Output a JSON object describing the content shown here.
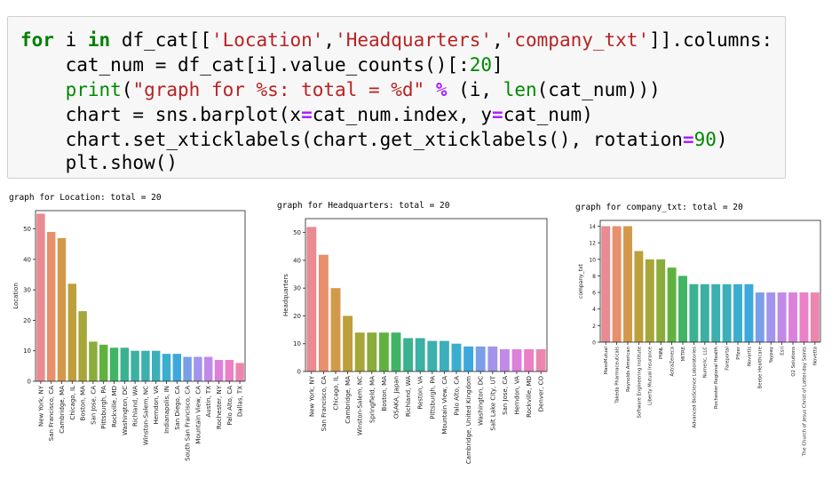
{
  "code": {
    "lines": [
      [
        {
          "t": "for",
          "c": "kw"
        },
        {
          "t": " i ",
          "c": ""
        },
        {
          "t": "in",
          "c": "kw"
        },
        {
          "t": " df_cat[[",
          "c": ""
        },
        {
          "t": "'Location'",
          "c": "str"
        },
        {
          "t": ",",
          "c": ""
        },
        {
          "t": "'Headquarters'",
          "c": "str"
        },
        {
          "t": ",",
          "c": ""
        },
        {
          "t": "'company_txt'",
          "c": "str"
        },
        {
          "t": "]].columns:",
          "c": ""
        }
      ],
      [
        {
          "t": "    cat_num = df_cat[i].value_counts()[:",
          "c": ""
        },
        {
          "t": "20",
          "c": "num"
        },
        {
          "t": "]",
          "c": ""
        }
      ],
      [
        {
          "t": "    ",
          "c": ""
        },
        {
          "t": "print",
          "c": "num"
        },
        {
          "t": "(",
          "c": ""
        },
        {
          "t": "\"graph for %s: total = %d\"",
          "c": "str"
        },
        {
          "t": " ",
          "c": ""
        },
        {
          "t": "%",
          "c": "op"
        },
        {
          "t": " (i, ",
          "c": ""
        },
        {
          "t": "len",
          "c": "num"
        },
        {
          "t": "(cat_num)))",
          "c": ""
        }
      ],
      [
        {
          "t": "    chart = sns.barplot(x",
          "c": ""
        },
        {
          "t": "=",
          "c": "op"
        },
        {
          "t": "cat_num.index, y",
          "c": ""
        },
        {
          "t": "=",
          "c": "op"
        },
        {
          "t": "cat_num)",
          "c": ""
        }
      ],
      [
        {
          "t": "    chart.set_xticklabels(chart.get_xticklabels(), rotation",
          "c": ""
        },
        {
          "t": "=",
          "c": "op"
        },
        {
          "t": "90",
          "c": "num"
        },
        {
          "t": ")",
          "c": ""
        }
      ],
      [
        {
          "t": "    plt.show()",
          "c": ""
        }
      ]
    ]
  },
  "outputs": [
    {
      "title": "graph for Location: total = 20"
    },
    {
      "title": "graph for Headquarters: total = 20"
    },
    {
      "title": "graph for company_txt: total = 20"
    }
  ],
  "chart_data": [
    {
      "type": "bar",
      "ylabel": "Location",
      "ylim": [
        0,
        56
      ],
      "yticks": [
        0,
        10,
        20,
        30,
        40,
        50
      ],
      "categories": [
        "New York, NY",
        "San Francisco, CA",
        "Cambridge, MA",
        "Chicago, IL",
        "Boston, MA",
        "San Jose, CA",
        "Pittsburgh, PA",
        "Rockville, MD",
        "Washington, DC",
        "Richland, WA",
        "Winston-Salem, NC",
        "Herndon, VA",
        "Indianapolis, IN",
        "San Diego, CA",
        "South San Francisco, CA",
        "Mountain View, CA",
        "Austin, TX",
        "Rochester, NY",
        "Palo Alto, CA",
        "Dallas, TX"
      ],
      "values": [
        55,
        49,
        47,
        32,
        23,
        13,
        12,
        11,
        11,
        10,
        10,
        10,
        9,
        9,
        8,
        8,
        8,
        7,
        7,
        6
      ],
      "colors": [
        "#ea8a91",
        "#e7906b",
        "#d3994a",
        "#bd9f3b",
        "#a7a639",
        "#8aac3b",
        "#60b23f",
        "#41b465",
        "#3bb28f",
        "#3bb0a3",
        "#3bb0ae",
        "#3cafbb",
        "#3aaece",
        "#3da8dd",
        "#7a9ee8",
        "#a294ec",
        "#c18ae8",
        "#dc81db",
        "#eb80c6",
        "#ec86ae"
      ]
    },
    {
      "type": "bar",
      "ylabel": "Headquarters",
      "ylim": [
        0,
        55
      ],
      "yticks": [
        0,
        10,
        20,
        30,
        40,
        50
      ],
      "categories": [
        "New York, NY",
        "San Francisco, CA",
        "Chicago, IL",
        "Cambridge, MA",
        "Winston-Salem, NC",
        "Springfield, MA",
        "Boston, MA",
        "OSAKA, Japan",
        "Richland, WA",
        "Reston, VA",
        "Pittsburgh, PA",
        "Mountain View, CA",
        "Palo Alto, CA",
        "Cambridge, United Kingdom",
        "Washington, DC",
        "Salt Lake City, UT",
        "San Jose, CA",
        "Herndon, VA",
        "Rockville, MD",
        "Denver, CO"
      ],
      "values": [
        52,
        42,
        30,
        20,
        14,
        14,
        14,
        14,
        12,
        12,
        11,
        11,
        10,
        9,
        9,
        9,
        8,
        8,
        8,
        8
      ],
      "colors": [
        "#ea8a91",
        "#e7906b",
        "#d3994a",
        "#bd9f3b",
        "#a7a639",
        "#8aac3b",
        "#60b23f",
        "#41b465",
        "#3bb28f",
        "#3bb0a3",
        "#3bb0ae",
        "#3cafbb",
        "#3aaece",
        "#3da8dd",
        "#7a9ee8",
        "#a294ec",
        "#c18ae8",
        "#dc81db",
        "#eb80c6",
        "#ec86ae"
      ]
    },
    {
      "type": "bar",
      "ylabel": "company_txt",
      "ylim": [
        0,
        14.7
      ],
      "yticks": [
        0,
        2,
        4,
        6,
        8,
        10,
        12,
        14
      ],
      "categories": [
        "MassMutual",
        "Takeda Pharmaceuticals",
        "Reynolds American",
        "Software Engineering Institute",
        "Liberty Mutual Insurance",
        "PNNL",
        "AstraZeneca",
        "MITRE",
        "Advanced BioScience Laboratories",
        "Numeric, LLC",
        "Rochester Regional Health",
        "Fareportal",
        "Pfizer",
        "Novartis",
        "Beebe Healthcare",
        "Yaypay",
        "Esri",
        "Q2 Solutions",
        "The Church of Jesus Christ of Latter-day Saints",
        "Novetta"
      ],
      "values": [
        14,
        14,
        14,
        11,
        10,
        10,
        9,
        8,
        7,
        7,
        7,
        7,
        7,
        7,
        6,
        6,
        6,
        6,
        6,
        6
      ],
      "colors": [
        "#ea8a91",
        "#e7906b",
        "#d3994a",
        "#bd9f3b",
        "#a7a639",
        "#8aac3b",
        "#60b23f",
        "#41b465",
        "#3bb28f",
        "#3bb0a3",
        "#3bb0ae",
        "#3cafbb",
        "#3aaece",
        "#3da8dd",
        "#7a9ee8",
        "#a294ec",
        "#c18ae8",
        "#dc81db",
        "#eb80c6",
        "#ec86ae"
      ]
    }
  ]
}
